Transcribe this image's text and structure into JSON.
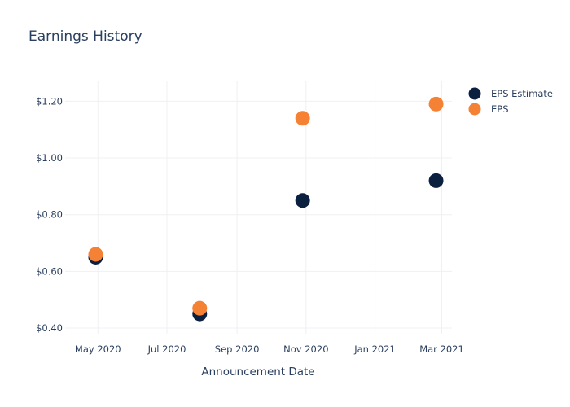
{
  "chart_data": {
    "type": "scatter",
    "title": "Earnings History",
    "xlabel": "Announcement Date",
    "ylabel": "",
    "x_ticks": [
      "May 2020",
      "Jul 2020",
      "Sep 2020",
      "Nov 2020",
      "Jan 2021",
      "Mar 2021"
    ],
    "x_tick_dates": [
      "2020-05-01",
      "2020-07-01",
      "2020-09-01",
      "2020-11-01",
      "2021-01-01",
      "2021-03-01"
    ],
    "y_ticks": [
      "$0.40",
      "$0.60",
      "$0.80",
      "$1.00",
      "$1.20"
    ],
    "y_tick_values": [
      0.4,
      0.6,
      0.8,
      1.0,
      1.2
    ],
    "x_range": [
      "2020-04-02",
      "2021-03-10"
    ],
    "ylim": [
      0.38,
      1.27
    ],
    "grid": true,
    "legend_position": "top-right",
    "x": [
      "2020-04-29",
      "2020-07-30",
      "2020-10-29",
      "2021-02-24"
    ],
    "series": [
      {
        "name": "EPS Estimate",
        "color": "#0b1f3f",
        "values": [
          0.65,
          0.45,
          0.85,
          0.92
        ]
      },
      {
        "name": "EPS",
        "color": "#f58134",
        "values": [
          0.66,
          0.47,
          1.14,
          1.19
        ]
      }
    ]
  }
}
